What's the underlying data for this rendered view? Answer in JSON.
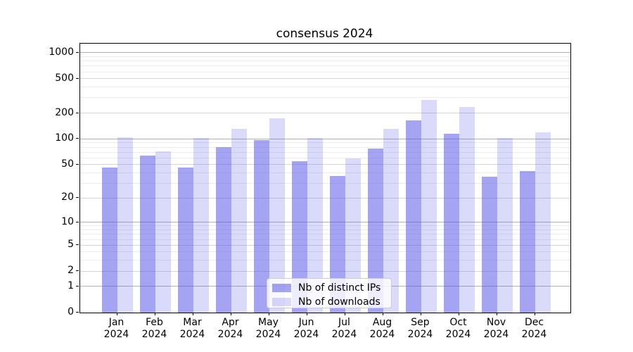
{
  "title": "consensus 2024",
  "chart_data": {
    "type": "bar",
    "title": "consensus 2024",
    "categories": [
      "Jan 2024",
      "Feb 2024",
      "Mar 2024",
      "Apr 2024",
      "May 2024",
      "Jun 2024",
      "Jul 2024",
      "Aug 2024",
      "Sep 2024",
      "Oct 2024",
      "Nov 2024",
      "Dec 2024"
    ],
    "x_tick_months": [
      "Jan",
      "Feb",
      "Mar",
      "Apr",
      "May",
      "Jun",
      "Jul",
      "Aug",
      "Sep",
      "Oct",
      "Nov",
      "Dec"
    ],
    "x_tick_year": "2024",
    "series": [
      {
        "name": "Nb of distinct IPs",
        "color": "rgba(80,80,230,0.52)",
        "values": [
          46,
          64,
          46,
          81,
          97,
          55,
          37,
          78,
          163,
          115,
          36,
          42
        ]
      },
      {
        "name": "Nb of downloads",
        "color": "rgba(80,80,230,0.21)",
        "values": [
          105,
          72,
          103,
          130,
          175,
          103,
          59,
          130,
          286,
          236,
          103,
          119
        ]
      }
    ],
    "xlabel": "",
    "ylabel": "",
    "yscale": "log1p",
    "ylim": [
      0,
      1270
    ],
    "y_ticks": [
      0,
      1,
      2,
      5,
      10,
      20,
      50,
      100,
      200,
      500,
      1000
    ],
    "y_tick_labels": [
      "0",
      "1",
      "2",
      "5",
      "10",
      "20",
      "50",
      "100",
      "200",
      "500",
      "1000"
    ],
    "grid": {
      "on": true,
      "major_values": [
        1,
        10,
        100,
        1000
      ],
      "mid_values": [
        2,
        5,
        20,
        50,
        200,
        500
      ],
      "minor_values": [
        3,
        4,
        6,
        7,
        8,
        9,
        30,
        40,
        60,
        70,
        80,
        90,
        300,
        400,
        600,
        700,
        800,
        900
      ],
      "major_color": "#b2b2b2",
      "mid_color": "#d6d6d6",
      "minor_color": "#ececec"
    },
    "legend_position": "lower center"
  },
  "legend": {
    "items": [
      {
        "label": "Nb of distinct IPs",
        "color": "rgba(80,80,230,0.52)"
      },
      {
        "label": "Nb of downloads",
        "color": "rgba(80,80,230,0.21)"
      }
    ]
  },
  "colors": {
    "background": "#ffffff",
    "axis": "#000000",
    "text": "#000000",
    "bar_base": "#5050e6"
  }
}
